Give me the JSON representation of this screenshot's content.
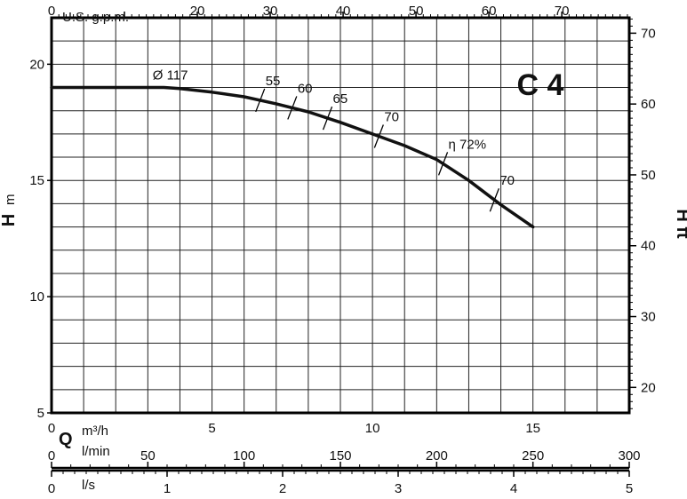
{
  "chart_data": {
    "type": "line",
    "title": "C 4",
    "grid": true,
    "series": [
      {
        "name": "Ø 117",
        "x": [
          0,
          1,
          2,
          3,
          3.5,
          4,
          5,
          6,
          7,
          8,
          9,
          10,
          11,
          12,
          13,
          14,
          15
        ],
        "values": [
          19.0,
          19.0,
          19.0,
          19.0,
          19.0,
          18.95,
          18.8,
          18.6,
          18.3,
          17.95,
          17.5,
          17.0,
          16.5,
          15.9,
          15.0,
          13.95,
          13.0
        ]
      }
    ],
    "efficiency_marks": [
      {
        "label": "55",
        "x": 6.5
      },
      {
        "label": "60",
        "x": 7.5
      },
      {
        "label": "65",
        "x": 8.6
      },
      {
        "label": "70",
        "x": 10.2
      },
      {
        "label": "η 72%",
        "x": 12.2
      },
      {
        "label": "70",
        "x": 13.8
      }
    ],
    "x_axis": {
      "letter": "Q",
      "unit": "m³/h",
      "range": [
        0,
        18
      ],
      "ticks": [
        "0",
        "5",
        "10",
        "15"
      ],
      "tick_values": [
        0,
        5,
        10,
        15
      ]
    },
    "y_left": {
      "letter": "H",
      "unit": "m",
      "range": [
        5,
        22
      ],
      "ticks": [
        "5",
        "10",
        "15",
        "20"
      ],
      "tick_values": [
        5,
        10,
        15,
        20
      ]
    },
    "y_right": {
      "label": "H ft",
      "ticks": [
        "20",
        "30",
        "40",
        "50",
        "60",
        "70"
      ],
      "tick_values": [
        20,
        30,
        40,
        50,
        60,
        70
      ]
    },
    "top_axis": {
      "unit": "U.S. g.p.m.",
      "ticks": [
        "0",
        "20",
        "30",
        "40",
        "50",
        "60",
        "70"
      ],
      "tick_values": [
        0,
        20,
        30,
        40,
        50,
        60,
        70
      ]
    },
    "lmin_axis": {
      "unit": "l/min",
      "ticks": [
        "0",
        "50",
        "100",
        "150",
        "200",
        "250",
        "300"
      ],
      "tick_values": [
        0,
        50,
        100,
        150,
        200,
        250,
        300
      ]
    },
    "ls_axis": {
      "unit": "l/s",
      "ticks": [
        "0",
        "1",
        "2",
        "3",
        "4",
        "5"
      ],
      "tick_values": [
        0,
        1,
        2,
        3,
        4,
        5
      ]
    },
    "colors": {
      "curve": "#111111",
      "grid": "#222222",
      "frame": "#000000"
    }
  }
}
